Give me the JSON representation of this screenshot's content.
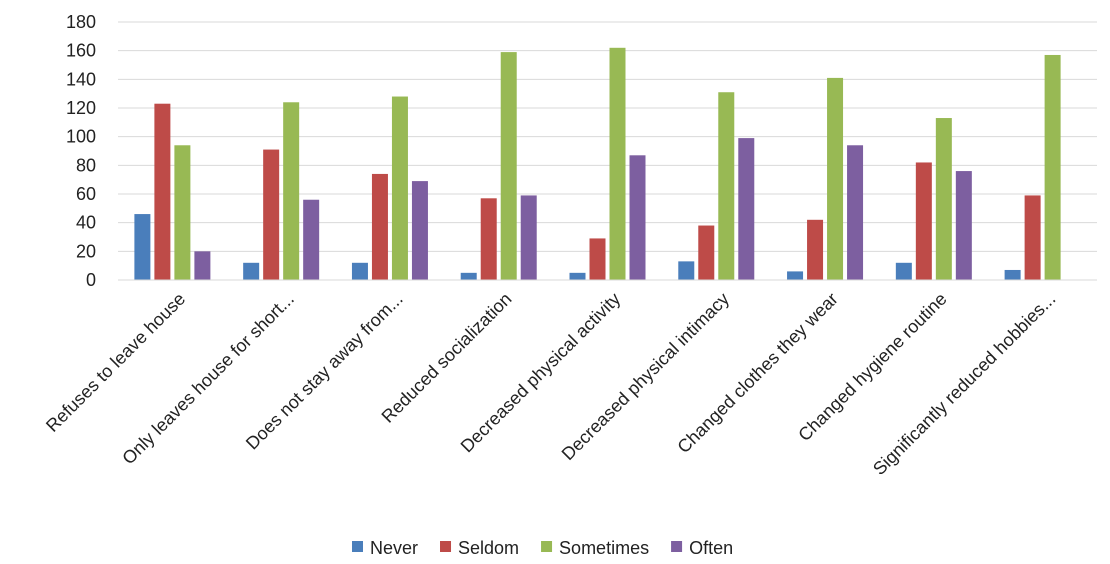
{
  "chart_data": {
    "type": "bar",
    "title": "",
    "xlabel": "",
    "ylabel": "",
    "ylim": [
      0,
      180
    ],
    "yticks": [
      0,
      20,
      40,
      60,
      80,
      100,
      120,
      140,
      160,
      180
    ],
    "grid": true,
    "legend_position": "bottom",
    "categories": [
      "Refuses to leave house",
      "Only leaves house for short...",
      "Does not stay away from...",
      "Reduced socialization",
      "Decreased physical activity",
      "Decreased physical intimacy",
      "Changed clothes they wear",
      "Changed hygiene routine",
      "Significantly reduced hobbies..."
    ],
    "series": [
      {
        "name": "Never",
        "color": "#4A7EBB",
        "values": [
          46,
          12,
          12,
          5,
          5,
          13,
          6,
          12,
          7
        ]
      },
      {
        "name": "Seldom",
        "color": "#BE4B48",
        "values": [
          123,
          91,
          74,
          57,
          29,
          38,
          42,
          82,
          59
        ]
      },
      {
        "name": "Sometimes",
        "color": "#98B954",
        "values": [
          94,
          124,
          128,
          159,
          162,
          131,
          141,
          113,
          157
        ]
      },
      {
        "name": "Often",
        "color": "#7D5FA0",
        "values": [
          20,
          56,
          69,
          59,
          87,
          99,
          94,
          76,
          null
        ]
      }
    ]
  }
}
